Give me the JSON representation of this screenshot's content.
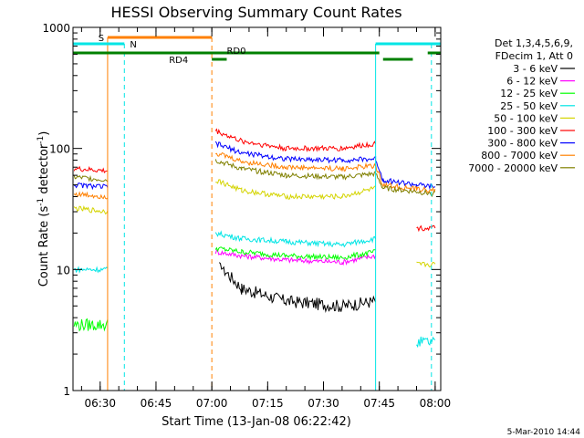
{
  "chart_data": {
    "type": "line",
    "title": "HESSI Observing Summary Count Rates",
    "ylabel": "Count Rate (s⁻¹ detector⁻¹)",
    "ylabel_prefix": "Count Rate (s",
    "ylabel_mid": " detector",
    "ylabel_suffix": ")",
    "ylabel_sup": "-1",
    "xlabel": "Start Time (13-Jan-08 06:22:42)",
    "yscale": "log",
    "ylim": [
      1,
      1000
    ],
    "xlim_min": [
      382.7,
      481.5
    ],
    "x_tick_labels": [
      "06:30",
      "06:45",
      "07:00",
      "07:15",
      "07:30",
      "07:45",
      "08:00"
    ],
    "x_tick_minutes": [
      390,
      405,
      420,
      435,
      450,
      465,
      480
    ],
    "y_tick_labels": [
      "1",
      "10",
      "100",
      "1000"
    ],
    "y_tick_values": [
      1,
      10,
      100,
      1000
    ],
    "legend": {
      "header": [
        "Det 1,3,4,5,6,9,",
        "FDecim 1, Att 0"
      ],
      "placement": "right"
    },
    "series": [
      {
        "name": "3 - 6 keV",
        "color": "#000000",
        "x": [
          383,
          392,
          406,
          410,
          412,
          420,
          422,
          428,
          440,
          455,
          464,
          466,
          470,
          480
        ],
        "y": [
          null,
          null,
          null,
          null,
          null,
          null,
          11,
          7,
          5.5,
          5,
          5.5,
          null,
          null,
          null
        ]
      },
      {
        "name": "6 - 12 keV",
        "color": "#ff00ff",
        "x": [
          383,
          392,
          420,
          421,
          428,
          440,
          455,
          464,
          466
        ],
        "y": [
          null,
          null,
          null,
          14,
          13,
          12,
          11.5,
          13,
          null
        ]
      },
      {
        "name": "12 - 25 keV",
        "color": "#00ff00",
        "x": [
          383,
          392,
          420,
          421,
          428,
          440,
          455,
          464,
          466
        ],
        "y": [
          3.5,
          3.5,
          null,
          15,
          14,
          13,
          12.5,
          14,
          null
        ]
      },
      {
        "name": "25 - 50 keV",
        "color": "#00e5e5",
        "x": [
          383,
          392,
          420,
          421,
          428,
          440,
          455,
          464,
          466,
          475,
          480
        ],
        "y": [
          10,
          10,
          null,
          20,
          18,
          17,
          16,
          18,
          null,
          2.5,
          2.5
        ]
      },
      {
        "name": "50 - 100 keV",
        "color": "#d4d400",
        "x": [
          383,
          392,
          420,
          421,
          428,
          440,
          455,
          464,
          466,
          475,
          480
        ],
        "y": [
          32,
          30,
          null,
          55,
          45,
          40,
          40,
          47,
          null,
          11,
          11
        ]
      },
      {
        "name": "100 - 300 keV",
        "color": "#ff0000",
        "x": [
          383,
          392,
          420,
          421,
          428,
          440,
          455,
          464,
          466,
          475,
          480
        ],
        "y": [
          68,
          65,
          null,
          140,
          115,
          100,
          100,
          110,
          null,
          22,
          22
        ]
      },
      {
        "name": "300 - 800 keV",
        "color": "#0000ff",
        "x": [
          383,
          392,
          420,
          421,
          428,
          440,
          455,
          464,
          466,
          475,
          480
        ],
        "y": [
          50,
          48,
          null,
          110,
          92,
          82,
          80,
          82,
          55,
          50,
          48
        ]
      },
      {
        "name": "800 - 7000 keV",
        "color": "#ff8000",
        "x": [
          383,
          392,
          420,
          421,
          428,
          440,
          455,
          464,
          466,
          475,
          480
        ],
        "y": [
          42,
          40,
          null,
          92,
          78,
          70,
          68,
          72,
          50,
          46,
          45
        ]
      },
      {
        "name": "7000 - 20000 keV",
        "color": "#808000",
        "x": [
          383,
          392,
          420,
          421,
          428,
          440,
          455,
          464,
          466,
          475,
          480
        ],
        "y": [
          58,
          55,
          null,
          80,
          68,
          60,
          58,
          62,
          47,
          44,
          42
        ]
      }
    ],
    "annotations": [
      {
        "label": "S",
        "color": "#ff8000"
      },
      {
        "label": "N",
        "color": "#00e5e5"
      },
      {
        "label": "RD0",
        "color": "#008000"
      },
      {
        "label": "RD4",
        "color": "#008000"
      }
    ],
    "footer_date": "5-Mar-2010 14:44"
  }
}
